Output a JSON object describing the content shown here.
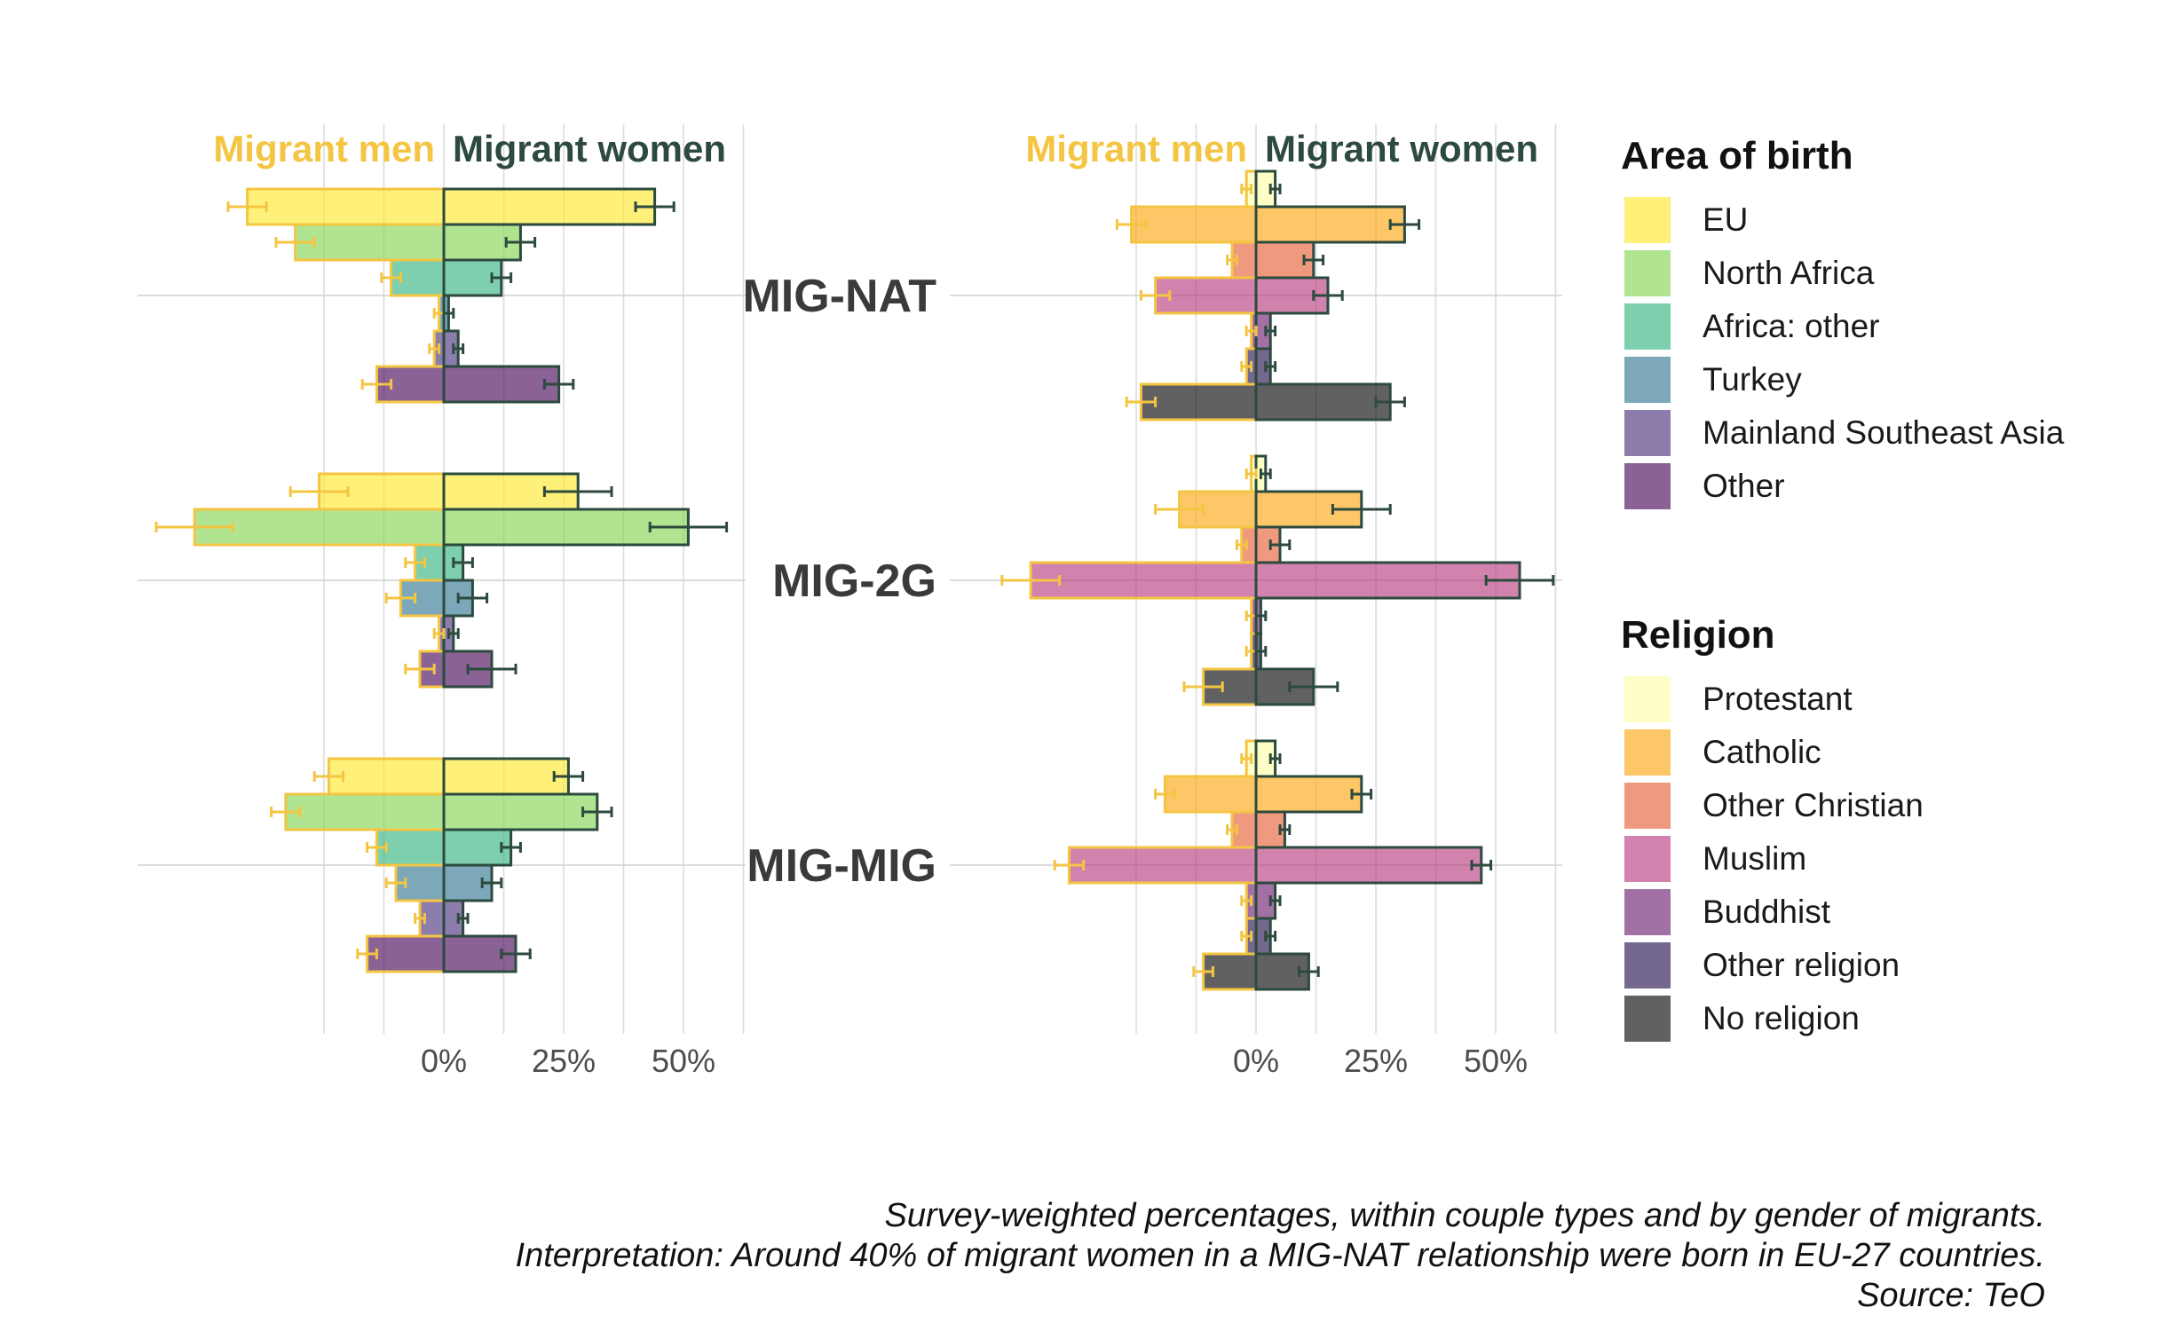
{
  "chart_data": {
    "type": "bar",
    "orientation": "horizontal-diverging",
    "header_left": "Migrant men",
    "header_right": "Migrant women",
    "color_men": "#f4c542",
    "color_women": "#2d4a3e",
    "couple_types": [
      "MIG-NAT",
      "MIG-2G",
      "MIG-MIG"
    ],
    "x_tick_labels": [
      "0%",
      "25%",
      "50%"
    ],
    "x_ticks": [
      0,
      25,
      50
    ],
    "xlim": [
      -65,
      65
    ],
    "grid": true,
    "legend_position": "right",
    "panels": [
      {
        "title": "Area of birth",
        "categories": [
          "EU",
          "North Africa",
          "Africa: other",
          "Turkey",
          "Mainland Southeast Asia",
          "Other"
        ],
        "colors": [
          "#fde725",
          "#7fd34e",
          "#2db27d",
          "#2c728e",
          "#472d7b",
          "#440154"
        ],
        "values": {
          "MIG-NAT": {
            "men": [
              41,
              31,
              11,
              1,
              2,
              14
            ],
            "women": [
              44,
              16,
              12,
              1,
              3,
              24
            ]
          },
          "MIG-2G": {
            "men": [
              26,
              52,
              6,
              9,
              1,
              5
            ],
            "women": [
              28,
              51,
              4,
              6,
              2,
              10
            ]
          },
          "MIG-MIG": {
            "men": [
              24,
              33,
              14,
              10,
              5,
              16
            ],
            "women": [
              26,
              32,
              14,
              10,
              4,
              15
            ]
          }
        },
        "error_bars": {
          "MIG-NAT": {
            "men": [
              4,
              4,
              2,
              1,
              1,
              3
            ],
            "women": [
              4,
              3,
              2,
              1,
              1,
              3
            ]
          },
          "MIG-2G": {
            "men": [
              6,
              8,
              2,
              3,
              1,
              3
            ],
            "women": [
              7,
              8,
              2,
              3,
              1,
              5
            ]
          },
          "MIG-MIG": {
            "men": [
              3,
              3,
              2,
              2,
              1,
              2
            ],
            "women": [
              3,
              3,
              2,
              2,
              1,
              3
            ]
          }
        }
      },
      {
        "title": "Religion",
        "categories": [
          "Protestant",
          "Catholic",
          "Other Christian",
          "Muslim",
          "Buddhist",
          "Other religion",
          "No religion"
        ],
        "colors": [
          "#fcffa4",
          "#fca50a",
          "#e55c30",
          "#b5367a",
          "#6b186e",
          "#1f0c48",
          "#000004"
        ],
        "values": {
          "MIG-NAT": {
            "men": [
              2,
              26,
              5,
              21,
              1,
              2,
              24
            ],
            "women": [
              4,
              31,
              12,
              15,
              3,
              3,
              28
            ]
          },
          "MIG-2G": {
            "men": [
              1,
              16,
              3,
              47,
              1,
              1,
              11
            ],
            "women": [
              2,
              22,
              5,
              55,
              1,
              1,
              12
            ]
          },
          "MIG-MIG": {
            "men": [
              2,
              19,
              5,
              39,
              2,
              2,
              11
            ],
            "women": [
              4,
              22,
              6,
              47,
              4,
              3,
              11
            ]
          }
        },
        "error_bars": {
          "MIG-NAT": {
            "men": [
              1,
              3,
              1,
              3,
              1,
              1,
              3
            ],
            "women": [
              1,
              3,
              2,
              3,
              1,
              1,
              3
            ]
          },
          "MIG-2G": {
            "men": [
              1,
              5,
              1,
              6,
              1,
              1,
              4
            ],
            "women": [
              1,
              6,
              2,
              7,
              1,
              1,
              5
            ]
          },
          "MIG-MIG": {
            "men": [
              1,
              2,
              1,
              3,
              1,
              1,
              2
            ],
            "women": [
              1,
              2,
              1,
              2,
              1,
              1,
              2
            ]
          }
        }
      }
    ]
  },
  "caption": {
    "line1": "Survey-weighted percentages, within couple types and by gender of migrants.",
    "line2": "Interpretation: Around 40% of migrant women in a MIG-NAT relationship  were born in EU-27 countries.",
    "line3": "Source: TeO"
  }
}
